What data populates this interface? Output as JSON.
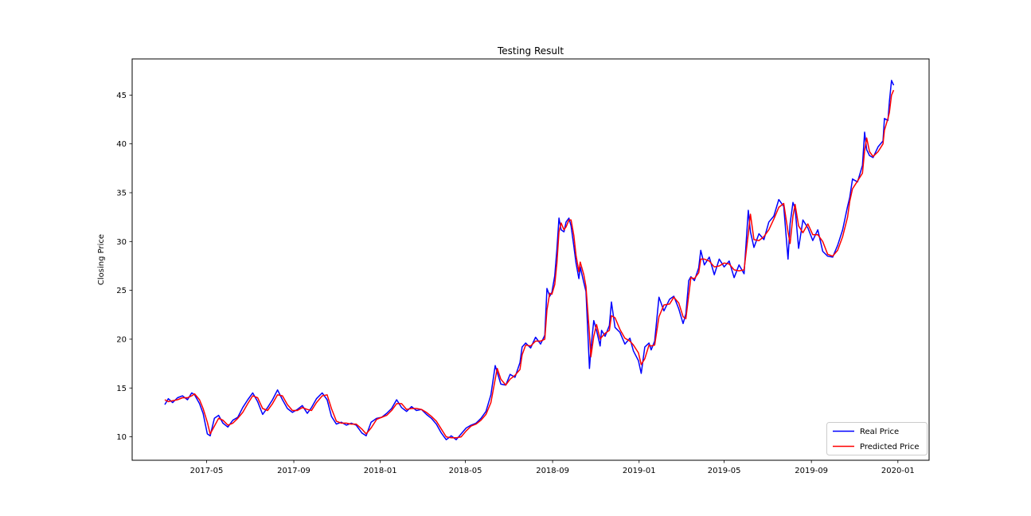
{
  "legend": {
    "items": [
      {
        "label": "Real Price",
        "color": "#0000ff"
      },
      {
        "label": "Predicted Price",
        "color": "#ff0000"
      }
    ],
    "border_color": "#cccccc",
    "background": "#ffffff"
  },
  "chart_data": {
    "type": "line",
    "title": "Testing Result",
    "xlabel": "",
    "ylabel": "Closing Price",
    "grid": false,
    "legend_position": "lower right",
    "x_ticks": [
      "2017-05",
      "2017-09",
      "2018-01",
      "2018-05",
      "2018-09",
      "2019-01",
      "2019-05",
      "2019-09",
      "2020-01"
    ],
    "y_ticks": [
      10,
      15,
      20,
      25,
      30,
      35,
      40,
      45
    ],
    "xlim": [
      "2017-01-16",
      "2020-02-14"
    ],
    "ylim": [
      7.6,
      48.7
    ],
    "series": [
      {
        "name": "Real Price",
        "color": "#0000ff",
        "column": 1
      },
      {
        "name": "Predicted Price",
        "color": "#ff0000",
        "column": 2
      }
    ],
    "columns": [
      "date",
      "real_price",
      "predicted_price"
    ],
    "points": [
      [
        "2017-03-03",
        13.3,
        13.8
      ],
      [
        "2017-03-08",
        13.9,
        13.6
      ],
      [
        "2017-03-14",
        13.5,
        13.7
      ],
      [
        "2017-03-21",
        14.0,
        13.8
      ],
      [
        "2017-03-28",
        14.2,
        14.0
      ],
      [
        "2017-04-04",
        13.8,
        14.0
      ],
      [
        "2017-04-10",
        14.5,
        14.2
      ],
      [
        "2017-04-14",
        14.3,
        14.4
      ],
      [
        "2017-04-21",
        13.4,
        13.8
      ],
      [
        "2017-04-26",
        12.4,
        12.9
      ],
      [
        "2017-05-02",
        10.3,
        11.5
      ],
      [
        "2017-05-06",
        10.1,
        10.3
      ],
      [
        "2017-05-12",
        11.9,
        11.1
      ],
      [
        "2017-05-18",
        12.2,
        11.9
      ],
      [
        "2017-05-24",
        11.4,
        11.7
      ],
      [
        "2017-05-31",
        11.0,
        11.2
      ],
      [
        "2017-06-07",
        11.7,
        11.4
      ],
      [
        "2017-06-14",
        12.0,
        11.9
      ],
      [
        "2017-06-21",
        13.0,
        12.5
      ],
      [
        "2017-06-28",
        13.8,
        13.4
      ],
      [
        "2017-07-05",
        14.5,
        14.2
      ],
      [
        "2017-07-12",
        13.6,
        14.0
      ],
      [
        "2017-07-19",
        12.3,
        12.9
      ],
      [
        "2017-07-26",
        13.0,
        12.7
      ],
      [
        "2017-08-02",
        13.8,
        13.4
      ],
      [
        "2017-08-09",
        14.8,
        14.3
      ],
      [
        "2017-08-16",
        13.8,
        14.2
      ],
      [
        "2017-08-23",
        12.9,
        13.3
      ],
      [
        "2017-08-30",
        12.5,
        12.7
      ],
      [
        "2017-09-06",
        12.8,
        12.7
      ],
      [
        "2017-09-13",
        13.2,
        13.0
      ],
      [
        "2017-09-20",
        12.4,
        12.8
      ],
      [
        "2017-09-26",
        13.0,
        12.7
      ],
      [
        "2017-10-03",
        13.9,
        13.5
      ],
      [
        "2017-10-11",
        14.5,
        14.2
      ],
      [
        "2017-10-18",
        13.8,
        14.3
      ],
      [
        "2017-10-24",
        12.1,
        12.9
      ],
      [
        "2017-10-31",
        11.3,
        11.6
      ],
      [
        "2017-11-07",
        11.5,
        11.4
      ],
      [
        "2017-11-14",
        11.2,
        11.4
      ],
      [
        "2017-11-21",
        11.4,
        11.3
      ],
      [
        "2017-11-28",
        11.2,
        11.3
      ],
      [
        "2017-12-06",
        10.4,
        10.8
      ],
      [
        "2017-12-12",
        10.1,
        10.3
      ],
      [
        "2017-12-19",
        11.5,
        10.9
      ],
      [
        "2017-12-27",
        11.9,
        11.8
      ],
      [
        "2018-01-03",
        12.0,
        12.0
      ],
      [
        "2018-01-10",
        12.4,
        12.2
      ],
      [
        "2018-01-17",
        12.9,
        12.7
      ],
      [
        "2018-01-24",
        13.8,
        13.4
      ],
      [
        "2018-01-31",
        13.0,
        13.4
      ],
      [
        "2018-02-07",
        12.6,
        12.8
      ],
      [
        "2018-02-14",
        13.1,
        12.9
      ],
      [
        "2018-02-21",
        12.7,
        12.9
      ],
      [
        "2018-02-28",
        12.8,
        12.8
      ],
      [
        "2018-03-07",
        12.3,
        12.5
      ],
      [
        "2018-03-14",
        11.9,
        12.1
      ],
      [
        "2018-03-21",
        11.3,
        11.6
      ],
      [
        "2018-03-28",
        10.4,
        10.8
      ],
      [
        "2018-04-04",
        9.7,
        10.0
      ],
      [
        "2018-04-11",
        10.1,
        9.9
      ],
      [
        "2018-04-18",
        9.7,
        9.9
      ],
      [
        "2018-04-25",
        10.3,
        10.0
      ],
      [
        "2018-05-02",
        10.9,
        10.6
      ],
      [
        "2018-05-09",
        11.2,
        11.1
      ],
      [
        "2018-05-16",
        11.4,
        11.3
      ],
      [
        "2018-05-23",
        11.9,
        11.7
      ],
      [
        "2018-05-30",
        12.6,
        12.3
      ],
      [
        "2018-06-06",
        14.3,
        13.5
      ],
      [
        "2018-06-12",
        17.3,
        15.9
      ],
      [
        "2018-06-15",
        16.6,
        17.0
      ],
      [
        "2018-06-20",
        15.4,
        15.9
      ],
      [
        "2018-06-27",
        15.3,
        15.3
      ],
      [
        "2018-07-03",
        16.4,
        15.9
      ],
      [
        "2018-07-10",
        16.1,
        16.3
      ],
      [
        "2018-07-17",
        17.6,
        16.9
      ],
      [
        "2018-07-20",
        19.2,
        18.4
      ],
      [
        "2018-07-25",
        19.6,
        19.4
      ],
      [
        "2018-08-01",
        19.1,
        19.3
      ],
      [
        "2018-08-08",
        20.2,
        19.8
      ],
      [
        "2018-08-15",
        19.5,
        19.8
      ],
      [
        "2018-08-21",
        20.4,
        20.0
      ],
      [
        "2018-08-24",
        25.2,
        23.0
      ],
      [
        "2018-08-28",
        24.4,
        24.7
      ],
      [
        "2018-08-31",
        24.8,
        24.6
      ],
      [
        "2018-09-04",
        26.5,
        25.6
      ],
      [
        "2018-09-07",
        29.2,
        27.8
      ],
      [
        "2018-09-10",
        32.4,
        31.0
      ],
      [
        "2018-09-13",
        31.2,
        31.9
      ],
      [
        "2018-09-17",
        31.0,
        31.2
      ],
      [
        "2018-09-20",
        32.0,
        31.5
      ],
      [
        "2018-09-24",
        32.4,
        32.2
      ],
      [
        "2018-09-27",
        31.6,
        32.2
      ],
      [
        "2018-10-01",
        29.5,
        30.6
      ],
      [
        "2018-10-04",
        27.8,
        28.6
      ],
      [
        "2018-10-08",
        26.2,
        26.9
      ],
      [
        "2018-10-10",
        27.4,
        27.9
      ],
      [
        "2018-10-15",
        25.8,
        26.6
      ],
      [
        "2018-10-18",
        24.9,
        25.4
      ],
      [
        "2018-10-23",
        17.0,
        20.5
      ],
      [
        "2018-10-25",
        19.0,
        18.2
      ],
      [
        "2018-10-29",
        21.9,
        20.3
      ],
      [
        "2018-11-02",
        20.9,
        21.5
      ],
      [
        "2018-11-07",
        19.3,
        20.0
      ],
      [
        "2018-11-09",
        20.9,
        20.2
      ],
      [
        "2018-11-14",
        20.3,
        20.6
      ],
      [
        "2018-11-20",
        21.4,
        20.9
      ],
      [
        "2018-11-23",
        23.8,
        22.4
      ],
      [
        "2018-11-28",
        21.2,
        22.2
      ],
      [
        "2018-12-05",
        20.7,
        21.0
      ],
      [
        "2018-12-12",
        19.5,
        20.1
      ],
      [
        "2018-12-19",
        20.1,
        19.8
      ],
      [
        "2018-12-24",
        18.8,
        19.4
      ],
      [
        "2018-12-31",
        17.8,
        18.6
      ],
      [
        "2019-01-04",
        16.5,
        17.4
      ],
      [
        "2019-01-09",
        19.2,
        18.0
      ],
      [
        "2019-01-15",
        19.6,
        19.4
      ],
      [
        "2019-01-18",
        18.9,
        19.3
      ],
      [
        "2019-01-23",
        19.8,
        19.4
      ],
      [
        "2019-01-29",
        24.3,
        22.3
      ],
      [
        "2019-02-05",
        22.9,
        23.5
      ],
      [
        "2019-02-13",
        24.1,
        23.6
      ],
      [
        "2019-02-19",
        24.4,
        24.3
      ],
      [
        "2019-02-26",
        23.1,
        23.7
      ],
      [
        "2019-03-04",
        21.6,
        22.3
      ],
      [
        "2019-03-08",
        22.6,
        22.1
      ],
      [
        "2019-03-12",
        26.0,
        24.5
      ],
      [
        "2019-03-15",
        26.4,
        26.3
      ],
      [
        "2019-03-20",
        26.0,
        26.2
      ],
      [
        "2019-03-26",
        27.3,
        26.8
      ],
      [
        "2019-03-29",
        29.1,
        28.2
      ],
      [
        "2019-04-03",
        27.6,
        28.2
      ],
      [
        "2019-04-10",
        28.4,
        28.0
      ],
      [
        "2019-04-17",
        26.6,
        27.4
      ],
      [
        "2019-04-24",
        28.2,
        27.5
      ],
      [
        "2019-05-01",
        27.4,
        27.8
      ],
      [
        "2019-05-08",
        28.0,
        27.7
      ],
      [
        "2019-05-15",
        26.3,
        27.1
      ],
      [
        "2019-05-22",
        27.6,
        27.0
      ],
      [
        "2019-05-29",
        26.7,
        27.1
      ],
      [
        "2019-06-04",
        33.2,
        30.8
      ],
      [
        "2019-06-07",
        31.0,
        32.8
      ],
      [
        "2019-06-12",
        29.4,
        30.2
      ],
      [
        "2019-06-19",
        30.8,
        30.1
      ],
      [
        "2019-06-26",
        30.2,
        30.5
      ],
      [
        "2019-07-03",
        32.0,
        31.2
      ],
      [
        "2019-07-10",
        32.6,
        32.3
      ],
      [
        "2019-07-17",
        34.3,
        33.5
      ],
      [
        "2019-07-24",
        33.6,
        33.9
      ],
      [
        "2019-07-30",
        28.2,
        31.0
      ],
      [
        "2019-08-02",
        31.8,
        29.8
      ],
      [
        "2019-08-06",
        34.0,
        32.6
      ],
      [
        "2019-08-09",
        33.4,
        33.8
      ],
      [
        "2019-08-14",
        29.3,
        31.6
      ],
      [
        "2019-08-20",
        32.2,
        30.9
      ],
      [
        "2019-08-27",
        31.4,
        31.8
      ],
      [
        "2019-09-03",
        30.1,
        30.7
      ],
      [
        "2019-09-10",
        31.2,
        30.7
      ],
      [
        "2019-09-17",
        29.0,
        30.0
      ],
      [
        "2019-09-24",
        28.5,
        28.7
      ],
      [
        "2019-10-01",
        28.4,
        28.5
      ],
      [
        "2019-10-08",
        29.6,
        29.1
      ],
      [
        "2019-10-15",
        31.2,
        30.5
      ],
      [
        "2019-10-22",
        33.6,
        32.5
      ],
      [
        "2019-10-25",
        34.5,
        34.1
      ],
      [
        "2019-10-29",
        36.4,
        35.4
      ],
      [
        "2019-11-05",
        36.1,
        36.2
      ],
      [
        "2019-11-12",
        37.8,
        37.0
      ],
      [
        "2019-11-15",
        41.2,
        39.3
      ],
      [
        "2019-11-18",
        39.4,
        40.6
      ],
      [
        "2019-11-22",
        38.8,
        39.2
      ],
      [
        "2019-11-27",
        38.6,
        38.7
      ],
      [
        "2019-12-04",
        39.7,
        39.2
      ],
      [
        "2019-12-11",
        40.3,
        40.0
      ],
      [
        "2019-12-13",
        42.6,
        41.4
      ],
      [
        "2019-12-18",
        42.4,
        42.6
      ],
      [
        "2019-12-20",
        44.3,
        43.2
      ],
      [
        "2019-12-23",
        46.5,
        45.0
      ],
      [
        "2019-12-26",
        46.0,
        45.5
      ]
    ]
  }
}
